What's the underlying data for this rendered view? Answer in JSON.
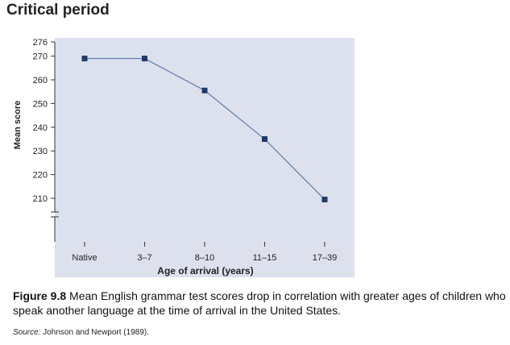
{
  "page": {
    "title": "Critical period"
  },
  "chart_data": {
    "type": "line",
    "title": "",
    "xlabel": "Age of arrival (years)",
    "ylabel": "Mean score",
    "categories": [
      "Native",
      "3–7",
      "8–10",
      "11–15",
      "17–39"
    ],
    "series": [
      {
        "values": [
          269,
          269,
          255.5,
          235,
          209.5
        ]
      }
    ],
    "ylim": [
      200,
      276
    ],
    "yticks": [
      210,
      220,
      230,
      240,
      250,
      260,
      270,
      276
    ],
    "axis_break": true,
    "grid": false,
    "colors": {
      "plot_bg": "#dde1ee",
      "line": "#5b7ca8",
      "marker": "#1f3a6b",
      "axis": "#333333"
    }
  },
  "caption": {
    "figure_label": "Figure 9.8",
    "text": " Mean English grammar test scores drop in correlation with greater ages of children who speak another language at the time of arrival in the United States."
  },
  "source": {
    "label": "Source:",
    "text": " Johnson and Newport (1989)."
  }
}
